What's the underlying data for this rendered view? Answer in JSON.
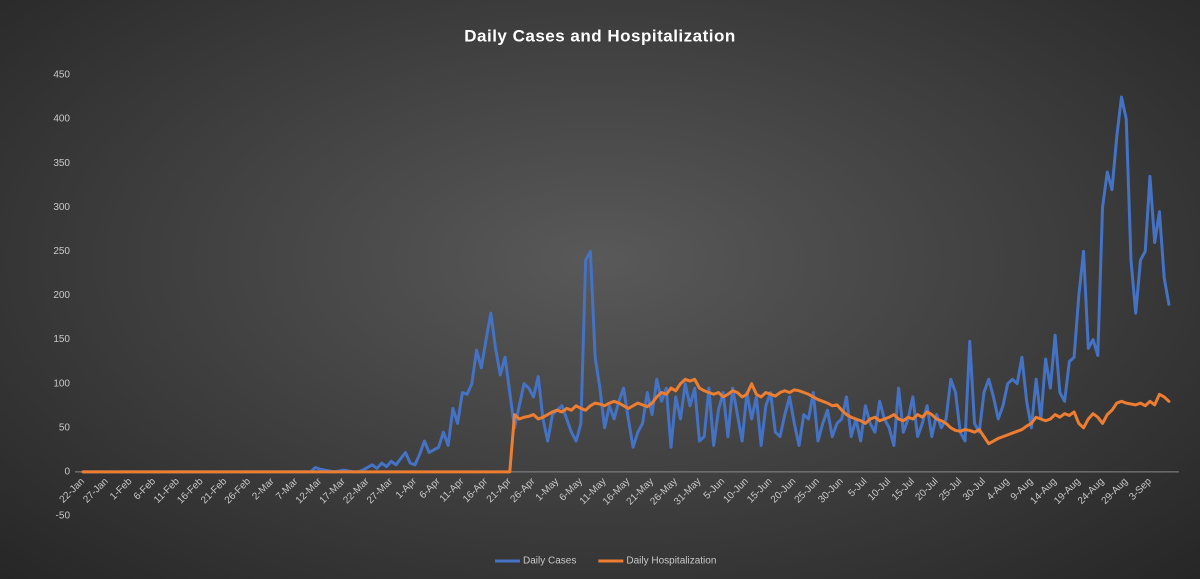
{
  "chart_data": {
    "type": "line",
    "title": "Daily Cases and Hospitalization",
    "categories": [
      "22-Jan",
      null,
      null,
      null,
      null,
      "27-Jan",
      null,
      null,
      null,
      null,
      "1-Feb",
      null,
      null,
      null,
      null,
      "6-Feb",
      null,
      null,
      null,
      null,
      "11-Feb",
      null,
      null,
      null,
      null,
      "16-Feb",
      null,
      null,
      null,
      null,
      "21-Feb",
      null,
      null,
      null,
      null,
      "26-Feb",
      null,
      null,
      null,
      null,
      "2-Mar",
      null,
      null,
      null,
      null,
      "7-Mar",
      null,
      null,
      null,
      null,
      "12-Mar",
      null,
      null,
      null,
      null,
      "17-Mar",
      null,
      null,
      null,
      null,
      "22-Mar",
      null,
      null,
      null,
      null,
      "27-Mar",
      null,
      null,
      null,
      null,
      "1-Apr",
      null,
      null,
      null,
      null,
      "6-Apr",
      null,
      null,
      null,
      null,
      "11-Apr",
      null,
      null,
      null,
      null,
      "16-Apr",
      null,
      null,
      null,
      null,
      "21-Apr",
      null,
      null,
      null,
      null,
      "26-Apr",
      null,
      null,
      null,
      null,
      "1-May",
      null,
      null,
      null,
      null,
      "6-May",
      null,
      null,
      null,
      null,
      "11-May",
      null,
      null,
      null,
      null,
      "16-May",
      null,
      null,
      null,
      null,
      "21-May",
      null,
      null,
      null,
      null,
      "26-May",
      null,
      null,
      null,
      null,
      "31-May",
      null,
      null,
      null,
      null,
      "5-Jun",
      null,
      null,
      null,
      null,
      "10-Jun",
      null,
      null,
      null,
      null,
      "15-Jun",
      null,
      null,
      null,
      null,
      "20-Jun",
      null,
      null,
      null,
      null,
      "25-Jun",
      null,
      null,
      null,
      null,
      "30-Jun",
      null,
      null,
      null,
      null,
      "5-Jul",
      null,
      null,
      null,
      null,
      "10-Jul",
      null,
      null,
      null,
      null,
      "15-Jul",
      null,
      null,
      null,
      null,
      "20-Jul",
      null,
      null,
      null,
      null,
      "25-Jul",
      null,
      null,
      null,
      null,
      "30-Jul",
      null,
      null,
      null,
      null,
      "4-Aug",
      null,
      null,
      null,
      null,
      "9-Aug",
      null,
      null,
      null,
      null,
      "14-Aug",
      null,
      null,
      null,
      null,
      "19-Aug",
      null,
      null,
      null,
      null,
      "24-Aug",
      null,
      null,
      null,
      null,
      "29-Aug",
      null,
      null,
      null,
      null,
      "3-Sep",
      null,
      null,
      null,
      null
    ],
    "series": [
      {
        "name": "Daily Cases",
        "color": "#4472c4",
        "values": [
          0,
          0,
          0,
          0,
          0,
          0,
          0,
          0,
          0,
          0,
          0,
          0,
          0,
          0,
          0,
          0,
          0,
          0,
          0,
          0,
          0,
          0,
          0,
          0,
          0,
          0,
          0,
          0,
          0,
          0,
          0,
          0,
          0,
          0,
          0,
          0,
          0,
          0,
          0,
          0,
          0,
          0,
          0,
          0,
          0,
          0,
          0,
          0,
          0,
          5,
          3,
          2,
          1,
          0,
          1,
          2,
          1,
          0,
          0,
          2,
          5,
          8,
          4,
          10,
          6,
          12,
          8,
          15,
          22,
          10,
          8,
          20,
          35,
          22,
          25,
          28,
          45,
          30,
          72,
          55,
          90,
          88,
          100,
          138,
          118,
          150,
          180,
          140,
          110,
          130,
          90,
          50,
          75,
          100,
          95,
          85,
          108,
          60,
          35,
          65,
          70,
          75,
          60,
          45,
          35,
          55,
          240,
          250,
          130,
          95,
          50,
          75,
          60,
          80,
          95,
          60,
          28,
          45,
          55,
          90,
          65,
          105,
          80,
          95,
          28,
          85,
          60,
          100,
          75,
          95,
          35,
          40,
          95,
          30,
          70,
          90,
          40,
          95,
          65,
          35,
          90,
          60,
          85,
          30,
          75,
          90,
          45,
          40,
          65,
          85,
          55,
          30,
          65,
          60,
          90,
          35,
          55,
          70,
          40,
          55,
          60,
          85,
          40,
          60,
          35,
          75,
          55,
          45,
          80,
          60,
          50,
          30,
          95,
          45,
          60,
          85,
          40,
          55,
          75,
          40,
          65,
          50,
          60,
          105,
          90,
          45,
          35,
          148,
          55,
          45,
          90,
          105,
          85,
          60,
          75,
          100,
          105,
          100,
          130,
          80,
          50,
          105,
          60,
          128,
          95,
          155,
          90,
          80,
          125,
          130,
          200,
          250,
          140,
          150,
          132,
          300,
          340,
          320,
          380,
          425,
          400,
          240,
          180,
          240,
          250,
          335,
          260,
          295,
          220,
          190
        ]
      },
      {
        "name": "Daily Hospitalization",
        "color": "#ed7d31",
        "values": [
          0,
          0,
          0,
          0,
          0,
          0,
          0,
          0,
          0,
          0,
          0,
          0,
          0,
          0,
          0,
          0,
          0,
          0,
          0,
          0,
          0,
          0,
          0,
          0,
          0,
          0,
          0,
          0,
          0,
          0,
          0,
          0,
          0,
          0,
          0,
          0,
          0,
          0,
          0,
          0,
          0,
          0,
          0,
          0,
          0,
          0,
          0,
          0,
          0,
          0,
          0,
          0,
          0,
          0,
          0,
          0,
          0,
          0,
          0,
          0,
          0,
          0,
          0,
          0,
          0,
          0,
          0,
          0,
          0,
          0,
          0,
          0,
          0,
          0,
          0,
          0,
          0,
          0,
          0,
          0,
          0,
          0,
          0,
          0,
          0,
          0,
          0,
          0,
          0,
          0,
          0,
          65,
          60,
          62,
          63,
          65,
          60,
          62,
          65,
          68,
          70,
          68,
          72,
          70,
          75,
          72,
          70,
          75,
          78,
          77,
          75,
          78,
          80,
          78,
          75,
          72,
          75,
          78,
          76,
          74,
          78,
          85,
          90,
          88,
          95,
          92,
          100,
          105,
          103,
          105,
          95,
          92,
          90,
          88,
          90,
          85,
          88,
          92,
          90,
          85,
          88,
          100,
          88,
          85,
          90,
          88,
          86,
          90,
          92,
          90,
          93,
          92,
          90,
          88,
          85,
          82,
          80,
          78,
          75,
          76,
          70,
          65,
          62,
          60,
          58,
          55,
          60,
          62,
          58,
          60,
          62,
          65,
          60,
          58,
          62,
          60,
          65,
          62,
          68,
          65,
          60,
          58,
          55,
          50,
          47,
          46,
          48,
          47,
          45,
          48,
          40,
          32,
          35,
          38,
          40,
          42,
          44,
          46,
          48,
          52,
          55,
          62,
          60,
          58,
          60,
          65,
          62,
          66,
          64,
          68,
          55,
          50,
          60,
          66,
          62,
          55,
          65,
          70,
          78,
          80,
          78,
          77,
          76,
          78,
          75,
          80,
          76,
          88,
          85,
          80
        ]
      }
    ],
    "ylim": [
      -50,
      450
    ],
    "yticks": [
      -50,
      0,
      50,
      100,
      150,
      200,
      250,
      300,
      350,
      400,
      450
    ],
    "legend": "bottom"
  }
}
